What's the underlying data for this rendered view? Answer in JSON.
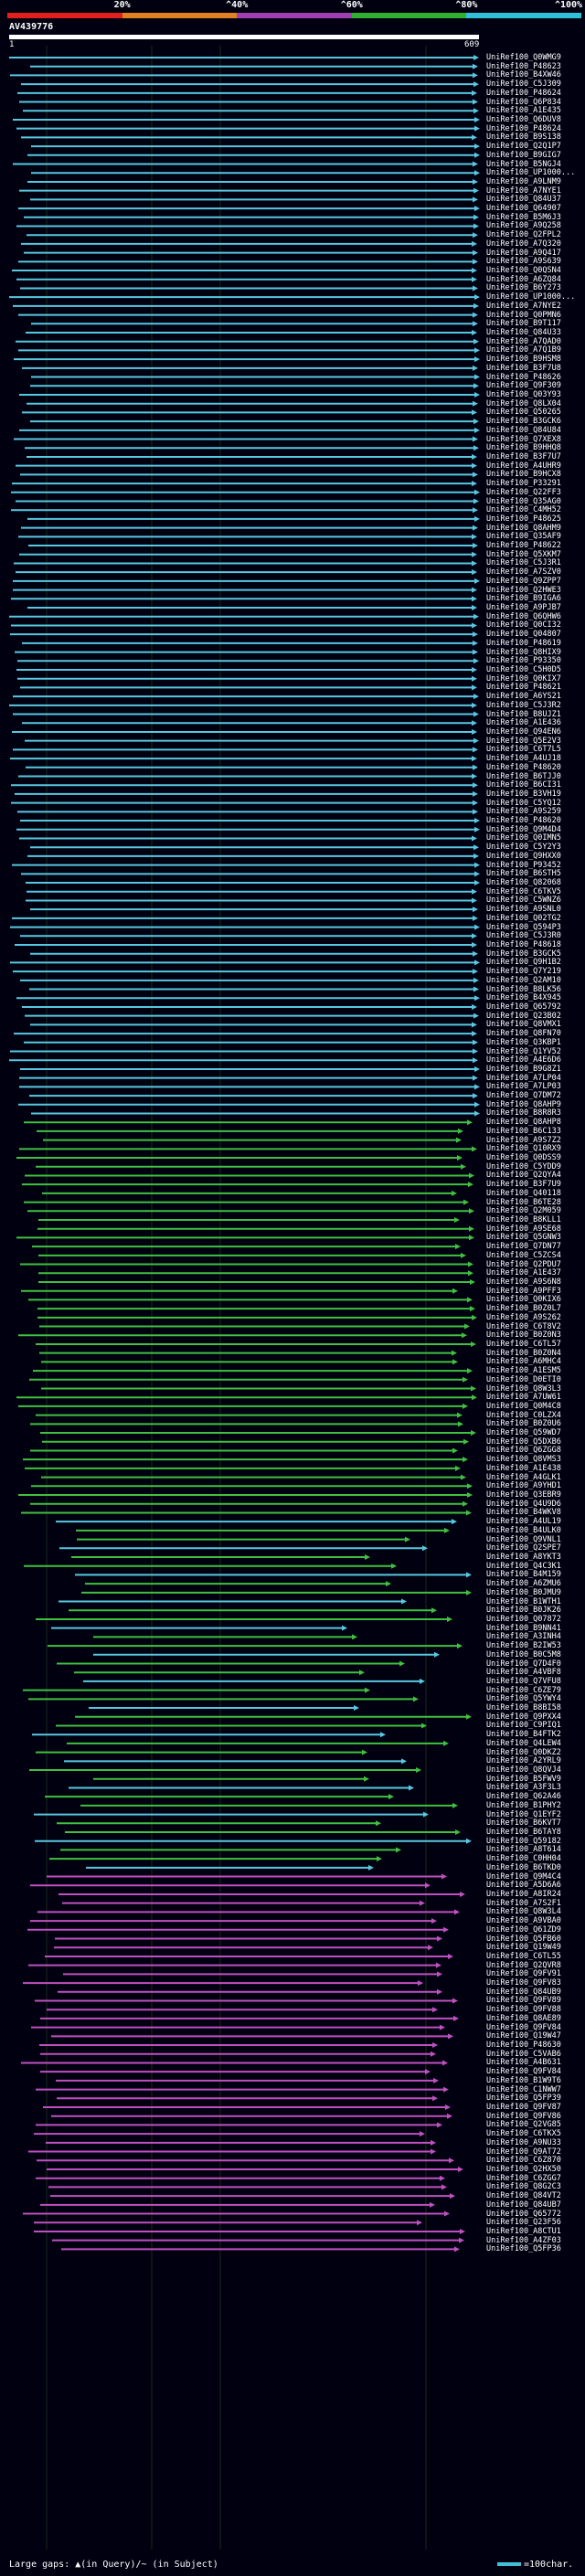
{
  "scale": {
    "labels": [
      "20%",
      "^40%",
      "^60%",
      "^80%",
      "^100%"
    ],
    "colors": [
      "#e0201c",
      "#e08020",
      "#a040b0",
      "#30b030",
      "#30c0d8"
    ]
  },
  "query": {
    "name": "AV439776",
    "start": "1",
    "end": "609"
  },
  "colors": {
    "cyan": "#58c8e0",
    "green": "#40c040",
    "magenta": "#c050c0",
    "background": "#000010"
  },
  "hit_labels": [
    "UniRef100_Q0WMG9",
    "UniRef100_P48623",
    "UniRef100_B4XW46",
    "UniRef100_C5J309",
    "UniRef100_P48624",
    "UniRef100_Q6P834",
    "UniRef100_A1E435",
    "UniRef100_Q6DUV8",
    "UniRef100_P48624",
    "UniRef100_B9S138",
    "UniRef100_Q2Q1P7",
    "UniRef100_B9GIG7",
    "UniRef100_B5NGJ4",
    "UniRef100_UP1000...",
    "UniRef100_A9LNM9",
    "UniRef100_A7NYE1",
    "UniRef100_Q84U37",
    "UniRef100_Q64907",
    "UniRef100_B5M6J3",
    "UniRef100_A9Q258",
    "UniRef100_Q2FPL2",
    "UniRef100_A7Q320",
    "UniRef100_A9Q417",
    "UniRef100_A9S639",
    "UniRef100_Q0QSN4",
    "UniRef100_A6ZQ84",
    "UniRef100_B6Y273",
    "UniRef100_UP1000...",
    "UniRef100_A7NYE2",
    "UniRef100_Q0PMN6",
    "UniRef100_B9T117",
    "UniRef100_Q84U33",
    "UniRef100_A7QAD0",
    "UniRef100_A7Q1B9",
    "UniRef100_B9HSM8",
    "UniRef100_B3F7U8",
    "UniRef100_P48626",
    "UniRef100_Q9F309",
    "UniRef100_Q03Y93",
    "UniRef100_Q8LX04",
    "UniRef100_Q50265",
    "UniRef100_B3GCK6",
    "UniRef100_Q84U84",
    "UniRef100_Q7XEX8",
    "UniRef100_B9HHQ8",
    "UniRef100_B3F7U7",
    "UniRef100_A4UHR9",
    "UniRef100_B9HCX8",
    "UniRef100_P33291",
    "UniRef100_Q22FF3",
    "UniRef100_Q35AG0",
    "UniRef100_C4MH52",
    "UniRef100_P48625",
    "UniRef100_Q8AHM9",
    "UniRef100_Q35AF9",
    "UniRef100_P48622",
    "UniRef100_Q5XKM7",
    "UniRef100_C5J3R1",
    "UniRef100_A7SZV0",
    "UniRef100_Q9ZPP7",
    "UniRef100_Q2HWE3",
    "UniRef100_B9IGA6",
    "UniRef100_A9PJB7",
    "UniRef100_Q6QHW6",
    "UniRef100_Q0CI32",
    "UniRef100_Q04807",
    "UniRef100_P48619",
    "UniRef100_Q8HIX9",
    "UniRef100_P93350",
    "UniRef100_C5H0D5",
    "UniRef100_Q0KIX7",
    "UniRef100_P48621",
    "UniRef100_A6YS21",
    "UniRef100_C5J3R2",
    "UniRef100_B8UJZ1",
    "UniRef100_A1E436",
    "UniRef100_Q94EN6",
    "UniRef100_Q5E2V3",
    "UniRef100_C6T7L5",
    "UniRef100_A4UJ18",
    "UniRef100_P48620",
    "UniRef100_B6TJJ0",
    "UniRef100_B6CI31",
    "UniRef100_B3VH19",
    "UniRef100_C5YQ12",
    "UniRef100_A9S259",
    "UniRef100_P48620",
    "UniRef100_Q9M4D4",
    "UniRef100_Q0IMN5",
    "UniRef100_C5Y2Y3",
    "UniRef100_Q9HXX0",
    "UniRef100_P93452",
    "UniRef100_B6STH5",
    "UniRef100_Q82068",
    "UniRef100_C6TKV5",
    "UniRef100_C5WNZ6",
    "UniRef100_A9SNL0",
    "UniRef100_Q02TG2",
    "UniRef100_Q594P3",
    "UniRef100_C5J3R0",
    "UniRef100_P48618",
    "UniRef100_B3GCK5",
    "UniRef100_Q9H1B2",
    "UniRef100_Q7Y219",
    "UniRef100_Q2AM10",
    "UniRef100_B8LK56",
    "UniRef100_B4X945",
    "UniRef100_Q65792",
    "UniRef100_Q23B02",
    "UniRef100_Q8VMX1",
    "UniRef100_Q8FN70",
    "UniRef100_Q3KBP1",
    "UniRef100_Q1YV52",
    "UniRef100_A4E6D6",
    "UniRef100_B9G8Z1",
    "UniRef100_A7LP04",
    "UniRef100_A7LP03",
    "UniRef100_Q7DM72",
    "UniRef100_Q8AHP9",
    "UniRef100_B8R8R3",
    "UniRef100_Q8AHP8",
    "UniRef100_B6C133",
    "UniRef100_A9S7Z2",
    "UniRef100_Q10RX9",
    "UniRef100_Q0DSS9",
    "UniRef100_C5YDD9",
    "UniRef100_Q2QYA4",
    "UniRef100_B3F7U9",
    "UniRef100_Q40118",
    "UniRef100_B6TE28",
    "UniRef100_Q2M059",
    "UniRef100_B8KLL1",
    "UniRef100_A9SE68",
    "UniRef100_Q5GNW3",
    "UniRef100_Q7DN77",
    "UniRef100_C5ZCS4",
    "UniRef100_Q2PDU7",
    "UniRef100_A1E437",
    "UniRef100_A9S6N8",
    "UniRef100_A9PFF3",
    "UniRef100_Q0KIX6",
    "UniRef100_B0Z0L7",
    "UniRef100_A9S262",
    "UniRef100_C6T8V2",
    "UniRef100_B0Z0N3",
    "UniRef100_C6TL57",
    "UniRef100_B0Z0N4",
    "UniRef100_A6MHC4",
    "UniRef100_A1ESM5",
    "UniRef100_D0ETI0",
    "UniRef100_Q8W3L3",
    "UniRef100_A7UW61",
    "UniRef100_Q0M4C8",
    "UniRef100_C0LZX4",
    "UniRef100_B0Z0U6",
    "UniRef100_Q59WD7",
    "UniRef100_Q5DXB6",
    "UniRef100_Q6ZGG8",
    "UniRef100_Q8VMS3",
    "UniRef100_A1E438",
    "UniRef100_A4GLK1",
    "UniRef100_A9YHD1",
    "UniRef100_Q3EBR9",
    "UniRef100_Q4U9D6",
    "UniRef100_B4WKV8",
    "UniRef100_A4UL19",
    "UniRef100_B4ULK0",
    "UniRef100_Q9VNL1",
    "UniRef100_Q2SPE7",
    "UniRef100_A8YKT3",
    "UniRef100_Q4C3K1",
    "UniRef100_B4M159",
    "UniRef100_A6ZMU6",
    "UniRef100_B0JMU9",
    "UniRef100_B1WTH1",
    "UniRef100_B0JK26",
    "UniRef100_Q07872",
    "UniRef100_B9NN41",
    "UniRef100_A3INH4",
    "UniRef100_B2IW53",
    "UniRef100_B0C5M8",
    "UniRef100_Q7D4F0",
    "UniRef100_A4VBF8",
    "UniRef100_Q7VFU8",
    "UniRef100_C6ZE79",
    "UniRef100_Q5YWY4",
    "UniRef100_B8BI58",
    "UniRef100_Q9PXX4",
    "UniRef100_C9PIQ1",
    "UniRef100_B4FTK2",
    "UniRef100_Q4LEW4",
    "UniRef100_Q0DKZ2",
    "UniRef100_A2YRL9",
    "UniRef100_Q8QVJ4",
    "UniRef100_B5FWV9",
    "UniRef100_A3F3L3",
    "UniRef100_Q62A46",
    "UniRef100_B1PHY2",
    "UniRef100_Q1EYF2",
    "UniRef100_B6KVT7",
    "UniRef100_B6TAY8",
    "UniRef100_Q59182",
    "UniRef100_A8T614",
    "UniRef100_C0HH04",
    "UniRef100_B6TKD0",
    "UniRef100_Q9M4C4",
    "UniRef100_A5D6A6",
    "UniRef100_A8IR24",
    "UniRef100_A7S2F1",
    "UniRef100_Q8W3L4",
    "UniRef100_A9VBA0",
    "UniRef100_Q61ZD9",
    "UniRef100_Q5FB60",
    "UniRef100_Q19W49",
    "UniRef100_C6TL55",
    "UniRef100_Q2QVR8",
    "UniRef100_Q9FV91",
    "UniRef100_Q9FV83",
    "UniRef100_Q84UB9",
    "UniRef100_Q9FV89",
    "UniRef100_Q9FV88",
    "UniRef100_Q8AE89",
    "UniRef100_Q9FV84",
    "UniRef100_Q19W47",
    "UniRef100_P48630",
    "UniRef100_C5VAB6",
    "UniRef100_A4B631",
    "UniRef100_Q9FV84",
    "UniRef100_B1W9T6",
    "UniRef100_C1NWW7",
    "UniRef100_Q5FP39",
    "UniRef100_Q9FV87",
    "UniRef100_Q9FV86",
    "UniRef100_Q2VG85",
    "UniRef100_C6TKX5",
    "UniRef100_A9NU33",
    "UniRef100_Q9AT72",
    "UniRef100_C6Z870",
    "UniRef100_Q2HX50",
    "UniRef100_C6ZGG7",
    "UniRef100_Q8G2C3",
    "UniRef100_Q84VT2",
    "UniRef100_Q84UB7",
    "UniRef100_Q65772",
    "UniRef100_Q23F56",
    "UniRef100_A8CTU1",
    "UniRef100_A4ZF03",
    "UniRef100_Q5FP36"
  ],
  "legend": {
    "left_text": "Large gaps: ▲(in Query)/~ (in Subject)",
    "right_text": "=100char."
  }
}
